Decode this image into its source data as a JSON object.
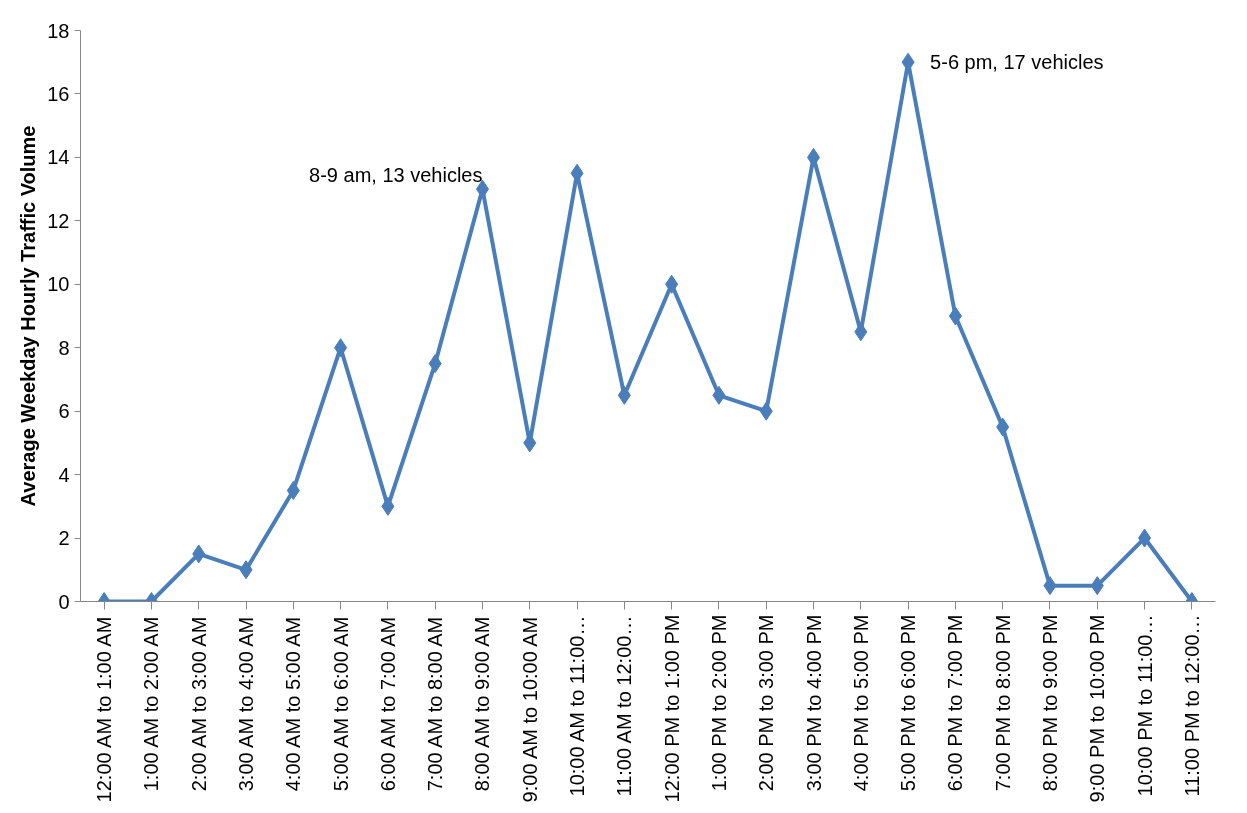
{
  "chart_data": {
    "type": "line",
    "ylabel": "Average Weekday Hourly Traffic Volume",
    "categories": [
      "12:00 AM to 1:00 AM",
      "1:00 AM to 2:00 AM",
      "2:00 AM to 3:00 AM",
      "3:00 AM to 4:00 AM",
      "4:00 AM to 5:00 AM",
      "5:00 AM to 6:00 AM",
      "6:00 AM to 7:00 AM",
      "7:00 AM to 8:00 AM",
      "8:00 AM to 9:00 AM",
      "9:00 AM to 10:00 AM",
      "10:00 AM to 11:00…",
      "11:00 AM to 12:00…",
      "12:00 PM to 1:00 PM",
      "1:00 PM to 2:00 PM",
      "2:00 PM to 3:00 PM",
      "3:00 PM to 4:00 PM",
      "4:00 PM to 5:00 PM",
      "5:00 PM to 6:00 PM",
      "6:00 PM to 7:00 PM",
      "7:00 PM to 8:00 PM",
      "8:00 PM to 9:00 PM",
      "9:00 PM to 10:00 PM",
      "10:00 PM to 11:00…",
      "11:00 PM to 12:00…"
    ],
    "series": [
      {
        "color": "#4a7ebb",
        "values": [
          0,
          0,
          1.5,
          1,
          3.5,
          8,
          3,
          7.5,
          13,
          5,
          13.5,
          6.5,
          10,
          6.5,
          6,
          14,
          8.5,
          17,
          9,
          5.5,
          0.5,
          0.5,
          2,
          0
        ]
      }
    ],
    "ylim": [
      0,
      18
    ],
    "yticks": [
      0,
      2,
      4,
      6,
      8,
      10,
      12,
      14,
      16,
      18
    ],
    "annotations": [
      {
        "text": "8-9 am, 13 vehicles",
        "x": "8:00 AM to 9:00 AM",
        "y": 13
      },
      {
        "text": "5-6 pm, 17 vehicles",
        "x": "5:00 PM to 6:00 PM",
        "y": 17
      }
    ],
    "grid": false,
    "marker": "diamond",
    "line_style": "solid"
  }
}
